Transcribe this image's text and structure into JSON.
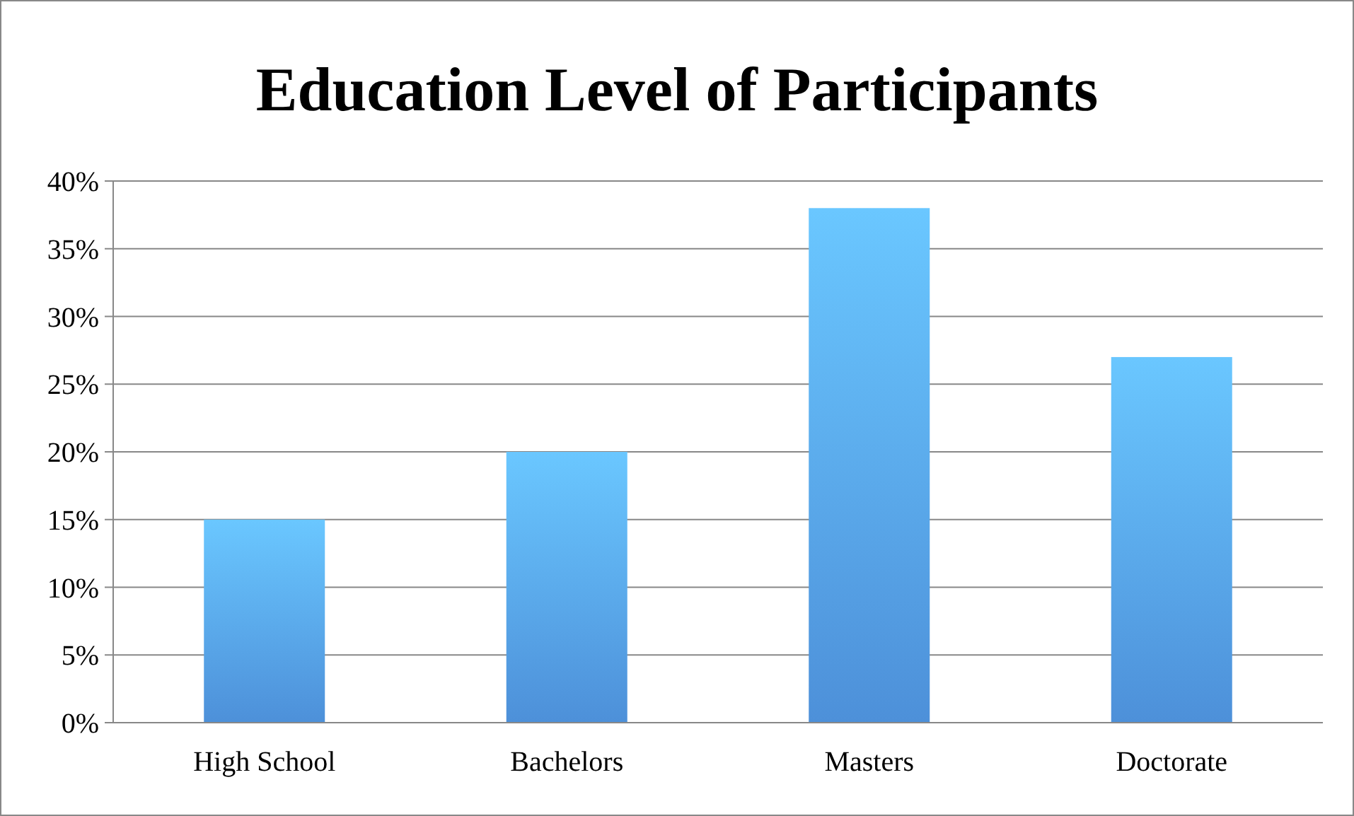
{
  "chart_data": {
    "type": "bar",
    "title": "Education Level of Participants",
    "categories": [
      "High School",
      "Bachelors",
      "Masters",
      "Doctorate"
    ],
    "values": [
      15,
      20,
      38,
      27
    ],
    "color": "#4d90d9",
    "ylim": [
      0,
      40
    ],
    "yticks": [
      {
        "value": 0,
        "label": "0%"
      },
      {
        "value": 5,
        "label": "5%"
      },
      {
        "value": 10,
        "label": "10%"
      },
      {
        "value": 15,
        "label": "15%"
      },
      {
        "value": 20,
        "label": "20%"
      },
      {
        "value": 25,
        "label": "25%"
      },
      {
        "value": 30,
        "label": "30%"
      },
      {
        "value": 35,
        "label": "35%"
      },
      {
        "value": 40,
        "label": "40%"
      }
    ],
    "grid": "y"
  }
}
